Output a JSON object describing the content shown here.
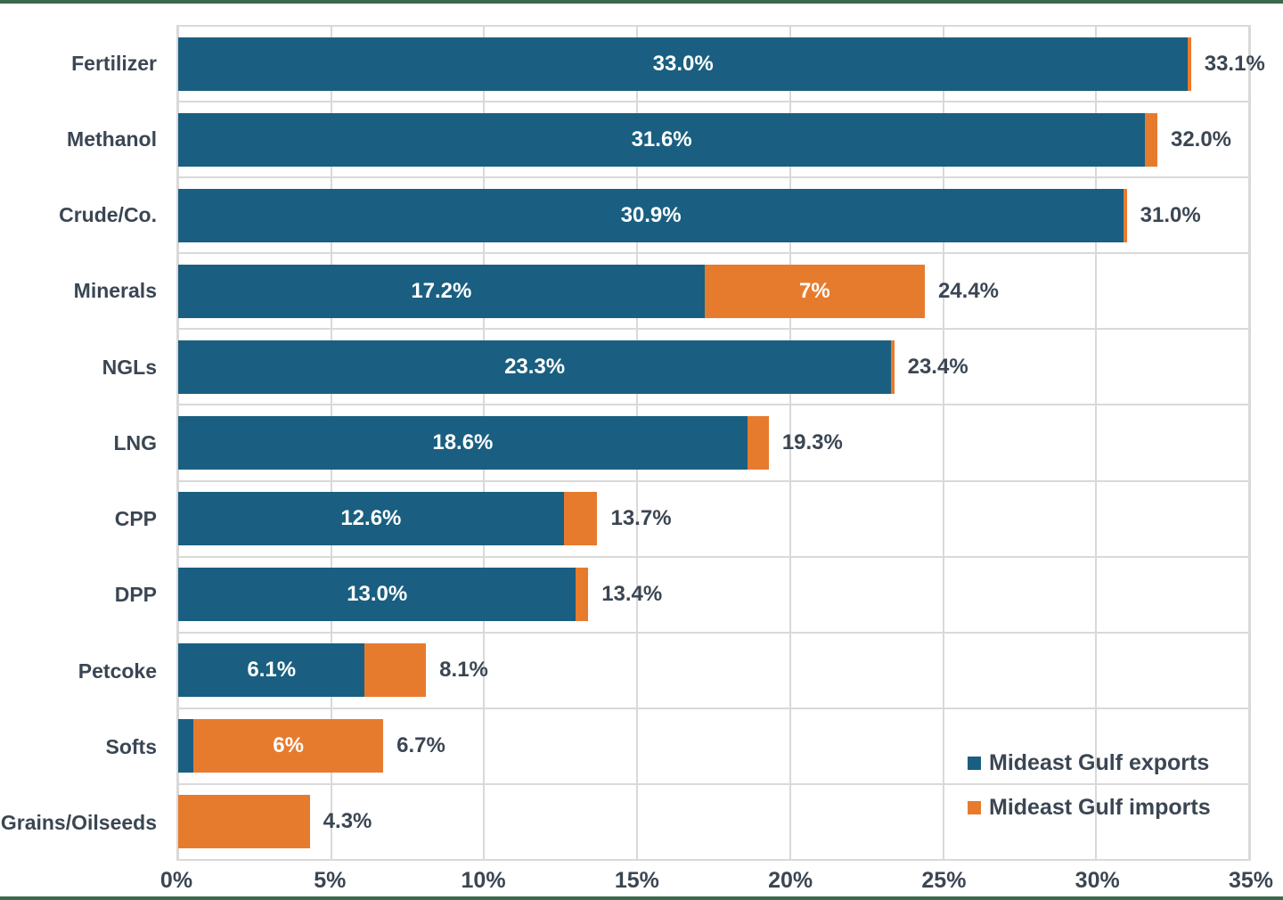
{
  "page": {
    "background": "#ffffff",
    "frame_border_color": "#3c684b"
  },
  "colors": {
    "exports": "#1a5f81",
    "imports": "#e77b2d",
    "text": "#3b4653",
    "gridline": "#d9d9d9",
    "bar_label": "#ffffff"
  },
  "legend": {
    "position": "inside-bottom-right",
    "items": [
      {
        "label": "Mideast Gulf exports",
        "color": "#1a5f81",
        "series_key": "exports"
      },
      {
        "label": "Mideast Gulf imports",
        "color": "#e77b2d",
        "series_key": "imports"
      }
    ]
  },
  "chart_data": {
    "type": "bar",
    "orientation": "horizontal",
    "stacked": true,
    "title": "",
    "xlabel": "",
    "ylabel": "",
    "xlim": [
      0,
      35
    ],
    "grid": true,
    "x_ticks": [
      {
        "value": 0,
        "label": "0%"
      },
      {
        "value": 5,
        "label": "5%"
      },
      {
        "value": 10,
        "label": "10%"
      },
      {
        "value": 15,
        "label": "15%"
      },
      {
        "value": 20,
        "label": "20%"
      },
      {
        "value": 25,
        "label": "25%"
      },
      {
        "value": 30,
        "label": "30%"
      },
      {
        "value": 35,
        "label": "35%"
      }
    ],
    "categories": [
      "Fertilizer",
      "Methanol",
      "Crude/Co.",
      "Minerals",
      "NGLs",
      "LNG",
      "CPP",
      "DPP",
      "Petcoke",
      "Softs",
      "Grains/Oilseeds"
    ],
    "series": [
      {
        "name": "Mideast Gulf exports",
        "values": [
          33.0,
          31.6,
          30.9,
          17.2,
          23.3,
          18.6,
          12.6,
          13.0,
          6.1,
          0.5,
          0.0
        ]
      },
      {
        "name": "Mideast Gulf imports",
        "values": [
          0.1,
          0.4,
          0.1,
          7.2,
          0.1,
          0.7,
          1.1,
          0.4,
          2.0,
          6.2,
          4.3
        ]
      }
    ],
    "rows": [
      {
        "category": "Fertilizer",
        "exports": 33.0,
        "imports": 0.1,
        "total": 33.1,
        "exports_label": "33.0%",
        "imports_label": "",
        "total_label": "33.1%"
      },
      {
        "category": "Methanol",
        "exports": 31.6,
        "imports": 0.4,
        "total": 32.0,
        "exports_label": "31.6%",
        "imports_label": "",
        "total_label": "32.0%"
      },
      {
        "category": "Crude/Co.",
        "exports": 30.9,
        "imports": 0.1,
        "total": 31.0,
        "exports_label": "30.9%",
        "imports_label": "",
        "total_label": "31.0%"
      },
      {
        "category": "Minerals",
        "exports": 17.2,
        "imports": 7.2,
        "total": 24.4,
        "exports_label": "17.2%",
        "imports_label": "7%",
        "total_label": "24.4%"
      },
      {
        "category": "NGLs",
        "exports": 23.3,
        "imports": 0.1,
        "total": 23.4,
        "exports_label": "23.3%",
        "imports_label": "",
        "total_label": "23.4%"
      },
      {
        "category": "LNG",
        "exports": 18.6,
        "imports": 0.7,
        "total": 19.3,
        "exports_label": "18.6%",
        "imports_label": "",
        "total_label": "19.3%"
      },
      {
        "category": "CPP",
        "exports": 12.6,
        "imports": 1.1,
        "total": 13.7,
        "exports_label": "12.6%",
        "imports_label": "",
        "total_label": "13.7%"
      },
      {
        "category": "DPP",
        "exports": 13.0,
        "imports": 0.4,
        "total": 13.4,
        "exports_label": "13.0%",
        "imports_label": "",
        "total_label": "13.4%"
      },
      {
        "category": "Petcoke",
        "exports": 6.1,
        "imports": 2.0,
        "total": 8.1,
        "exports_label": "6.1%",
        "imports_label": "",
        "total_label": "8.1%"
      },
      {
        "category": "Softs",
        "exports": 0.5,
        "imports": 6.2,
        "total": 6.7,
        "exports_label": "",
        "imports_label": "6%",
        "total_label": "6.7%"
      },
      {
        "category": "Grains/Oilseeds",
        "exports": 0.0,
        "imports": 4.3,
        "total": 4.3,
        "exports_label": "",
        "imports_label": "",
        "total_label": "4.3%"
      }
    ]
  }
}
